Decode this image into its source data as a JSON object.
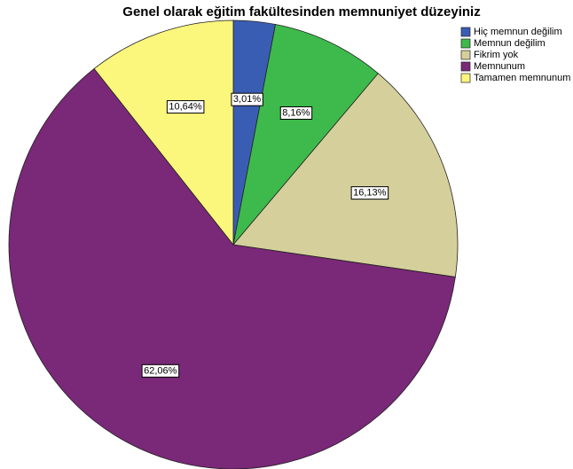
{
  "chart_data": {
    "type": "pie",
    "title": "Genel olarak eğitim fakültesinden memnuniyet düzeyiniz",
    "categories": [
      "Hiç memnun değilim",
      "Memnun değilim",
      "Fikrim yok",
      "Memnunum",
      "Tamamen memnunum"
    ],
    "values": [
      3.01,
      8.16,
      16.13,
      62.06,
      10.64
    ],
    "value_labels": [
      "3,01%",
      "8,16%",
      "16,13%",
      "62,06%",
      "10,64%"
    ],
    "colors": [
      "#3a5db4",
      "#3dba4b",
      "#d5cf9b",
      "#7a2878",
      "#fbf67c"
    ],
    "legend": "top-right"
  }
}
